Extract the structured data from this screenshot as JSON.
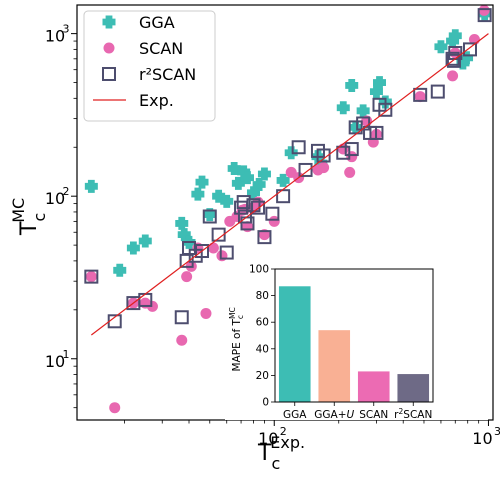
{
  "chart_data": [
    {
      "type": "scatter",
      "title": "",
      "xlabel": "T_c^Exp.",
      "ylabel": "T_c^MC",
      "xscale": "log",
      "yscale": "log",
      "xlim": [
        12,
        1050
      ],
      "ylim": [
        4.2,
        1500
      ],
      "xticks": [
        {
          "value": 100,
          "base": "10",
          "exp": "2"
        },
        {
          "value": 1000,
          "base": "10",
          "exp": "3"
        }
      ],
      "yticks": [
        {
          "value": 10,
          "base": "10",
          "exp": "1"
        },
        {
          "value": 100,
          "base": "10",
          "exp": "2"
        },
        {
          "value": 1000,
          "base": "10",
          "exp": "3"
        }
      ],
      "grid": false,
      "legend_position": "upper-left",
      "series": [
        {
          "name": "GGA",
          "marker": "plus",
          "color": "#3dbdb4",
          "points": [
            [
              14,
              115
            ],
            [
              19,
              35
            ],
            [
              22,
              48
            ],
            [
              25,
              53
            ],
            [
              37,
              68
            ],
            [
              38,
              58
            ],
            [
              40,
              52
            ],
            [
              44,
              103
            ],
            [
              46,
              122
            ],
            [
              50,
              77
            ],
            [
              55,
              100
            ],
            [
              60,
              93
            ],
            [
              65,
              148
            ],
            [
              68,
              120
            ],
            [
              72,
              141
            ],
            [
              75,
              130
            ],
            [
              80,
              105
            ],
            [
              85,
              118
            ],
            [
              90,
              137
            ],
            [
              110,
              125
            ],
            [
              120,
              185
            ],
            [
              160,
              175
            ],
            [
              165,
              160
            ],
            [
              210,
              350
            ],
            [
              230,
              480
            ],
            [
              240,
              265
            ],
            [
              260,
              335
            ],
            [
              300,
              440
            ],
            [
              310,
              500
            ],
            [
              330,
              380
            ],
            [
              600,
              830
            ],
            [
              680,
              900
            ],
            [
              700,
              970
            ],
            [
              760,
              660
            ],
            [
              790,
              710
            ],
            [
              960,
              1320
            ]
          ]
        },
        {
          "name": "SCAN",
          "marker": "circle",
          "color": "#e868b0",
          "points": [
            [
              14,
              32
            ],
            [
              18,
              5
            ],
            [
              22,
              22
            ],
            [
              25,
              22
            ],
            [
              27,
              21
            ],
            [
              37,
              13
            ],
            [
              39,
              32
            ],
            [
              41,
              37
            ],
            [
              44,
              48
            ],
            [
              48,
              19
            ],
            [
              52,
              48
            ],
            [
              57,
              43
            ],
            [
              62,
              70
            ],
            [
              67,
              75
            ],
            [
              71,
              82
            ],
            [
              73,
              83
            ],
            [
              75,
              65
            ],
            [
              80,
              85
            ],
            [
              84,
              92
            ],
            [
              90,
              58
            ],
            [
              100,
              70
            ],
            [
              120,
              140
            ],
            [
              130,
              130
            ],
            [
              160,
              145
            ],
            [
              170,
              150
            ],
            [
              210,
              195
            ],
            [
              225,
              140
            ],
            [
              230,
              175
            ],
            [
              270,
              290
            ],
            [
              290,
              215
            ],
            [
              300,
              240
            ],
            [
              480,
              410
            ],
            [
              680,
              550
            ],
            [
              700,
              760
            ],
            [
              860,
              920
            ],
            [
              955,
              1390
            ]
          ]
        },
        {
          "name": "r²SCAN",
          "marker": "square",
          "color": "#4d4d6e",
          "points": [
            [
              14,
              32
            ],
            [
              18,
              17
            ],
            [
              22,
              22
            ],
            [
              25,
              23
            ],
            [
              37,
              18
            ],
            [
              39,
              40
            ],
            [
              40,
              48
            ],
            [
              43,
              43
            ],
            [
              46,
              46
            ],
            [
              50,
              75
            ],
            [
              55,
              58
            ],
            [
              60,
              45
            ],
            [
              70,
              85
            ],
            [
              72,
              92
            ],
            [
              73,
              75
            ],
            [
              75,
              68
            ],
            [
              80,
              88
            ],
            [
              84,
              85
            ],
            [
              90,
              56
            ],
            [
              98,
              78
            ],
            [
              110,
              100
            ],
            [
              130,
              200
            ],
            [
              140,
              145
            ],
            [
              160,
              190
            ],
            [
              170,
              178
            ],
            [
              210,
              185
            ],
            [
              230,
              195
            ],
            [
              240,
              265
            ],
            [
              260,
              280
            ],
            [
              280,
              245
            ],
            [
              300,
              245
            ],
            [
              310,
              365
            ],
            [
              330,
              340
            ],
            [
              480,
              420
            ],
            [
              580,
              440
            ],
            [
              680,
              700
            ],
            [
              690,
              680
            ],
            [
              700,
              760
            ],
            [
              820,
              800
            ],
            [
              960,
              1300
            ]
          ]
        },
        {
          "name": "Exp.",
          "marker": "line",
          "color": "#e02020",
          "points": [
            [
              14,
              14
            ],
            [
              1000,
              1000
            ]
          ]
        }
      ]
    },
    {
      "type": "bar",
      "title": "",
      "xlabel": "",
      "ylabel": "MAPE of T_c^MC",
      "ylim": [
        0,
        100
      ],
      "yticks": [
        0,
        20,
        40,
        60,
        80,
        100
      ],
      "categories": [
        "GGA",
        "GGA+U",
        "SCAN",
        "r²SCAN"
      ],
      "category_labels": [
        {
          "main": "GGA",
          "italic": ""
        },
        {
          "main": "GGA+",
          "italic": "U"
        },
        {
          "main": "SCAN",
          "italic": ""
        },
        {
          "main": "r²SCAN",
          "italic": ""
        }
      ],
      "values": [
        87,
        54,
        23,
        21
      ],
      "colors": [
        "#3dbdb4",
        "#f9b094",
        "#ec6bb3",
        "#6e6a86"
      ]
    }
  ],
  "legend": {
    "entries": [
      "GGA",
      "SCAN",
      "r²SCAN",
      "Exp."
    ]
  }
}
